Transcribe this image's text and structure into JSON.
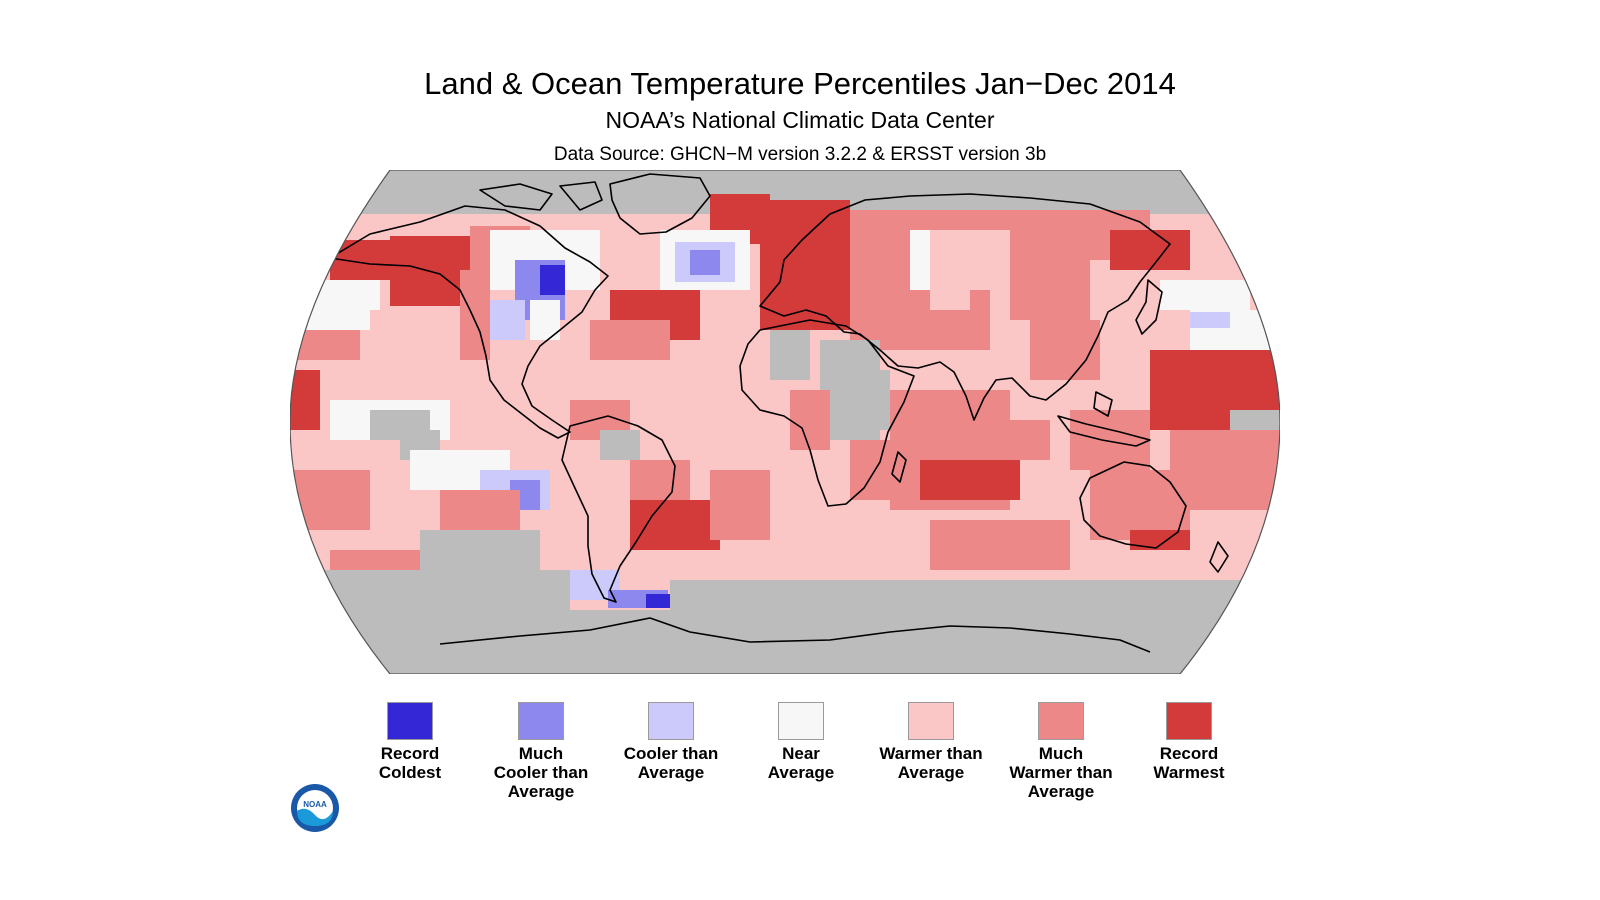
{
  "header": {
    "title": "Land & Ocean Temperature Percentiles Jan−Dec 2014",
    "subtitle": "NOAA’s National Climatic Data Center",
    "source": "Data Source: GHCN−M version 3.2.2 & ERSST version 3b"
  },
  "colors": {
    "record_coldest": "#3428d6",
    "much_cooler": "#8c88ee",
    "cooler": "#ccc9fb",
    "near_average": "#f7f7f7",
    "warmer": "#fbc6c6",
    "much_warmer": "#ec8888",
    "record_warmest": "#d33a3a",
    "no_data": "#bcbcbc"
  },
  "legend": {
    "items": [
      {
        "label": "Record\nColdest",
        "color": "#3428d6"
      },
      {
        "label": "Much\nCooler than\nAverage",
        "color": "#8c88ee"
      },
      {
        "label": "Cooler than\nAverage",
        "color": "#ccc9fb"
      },
      {
        "label": "Near\nAverage",
        "color": "#f7f7f7"
      },
      {
        "label": "Warmer than\nAverage",
        "color": "#fbc6c6"
      },
      {
        "label": "Much\nWarmer than\nAverage",
        "color": "#ec8888"
      },
      {
        "label": "Record\nWarmest",
        "color": "#d33a3a"
      }
    ]
  },
  "logo": {
    "text": "NOAA",
    "icon": "noaa-logo-icon"
  }
}
